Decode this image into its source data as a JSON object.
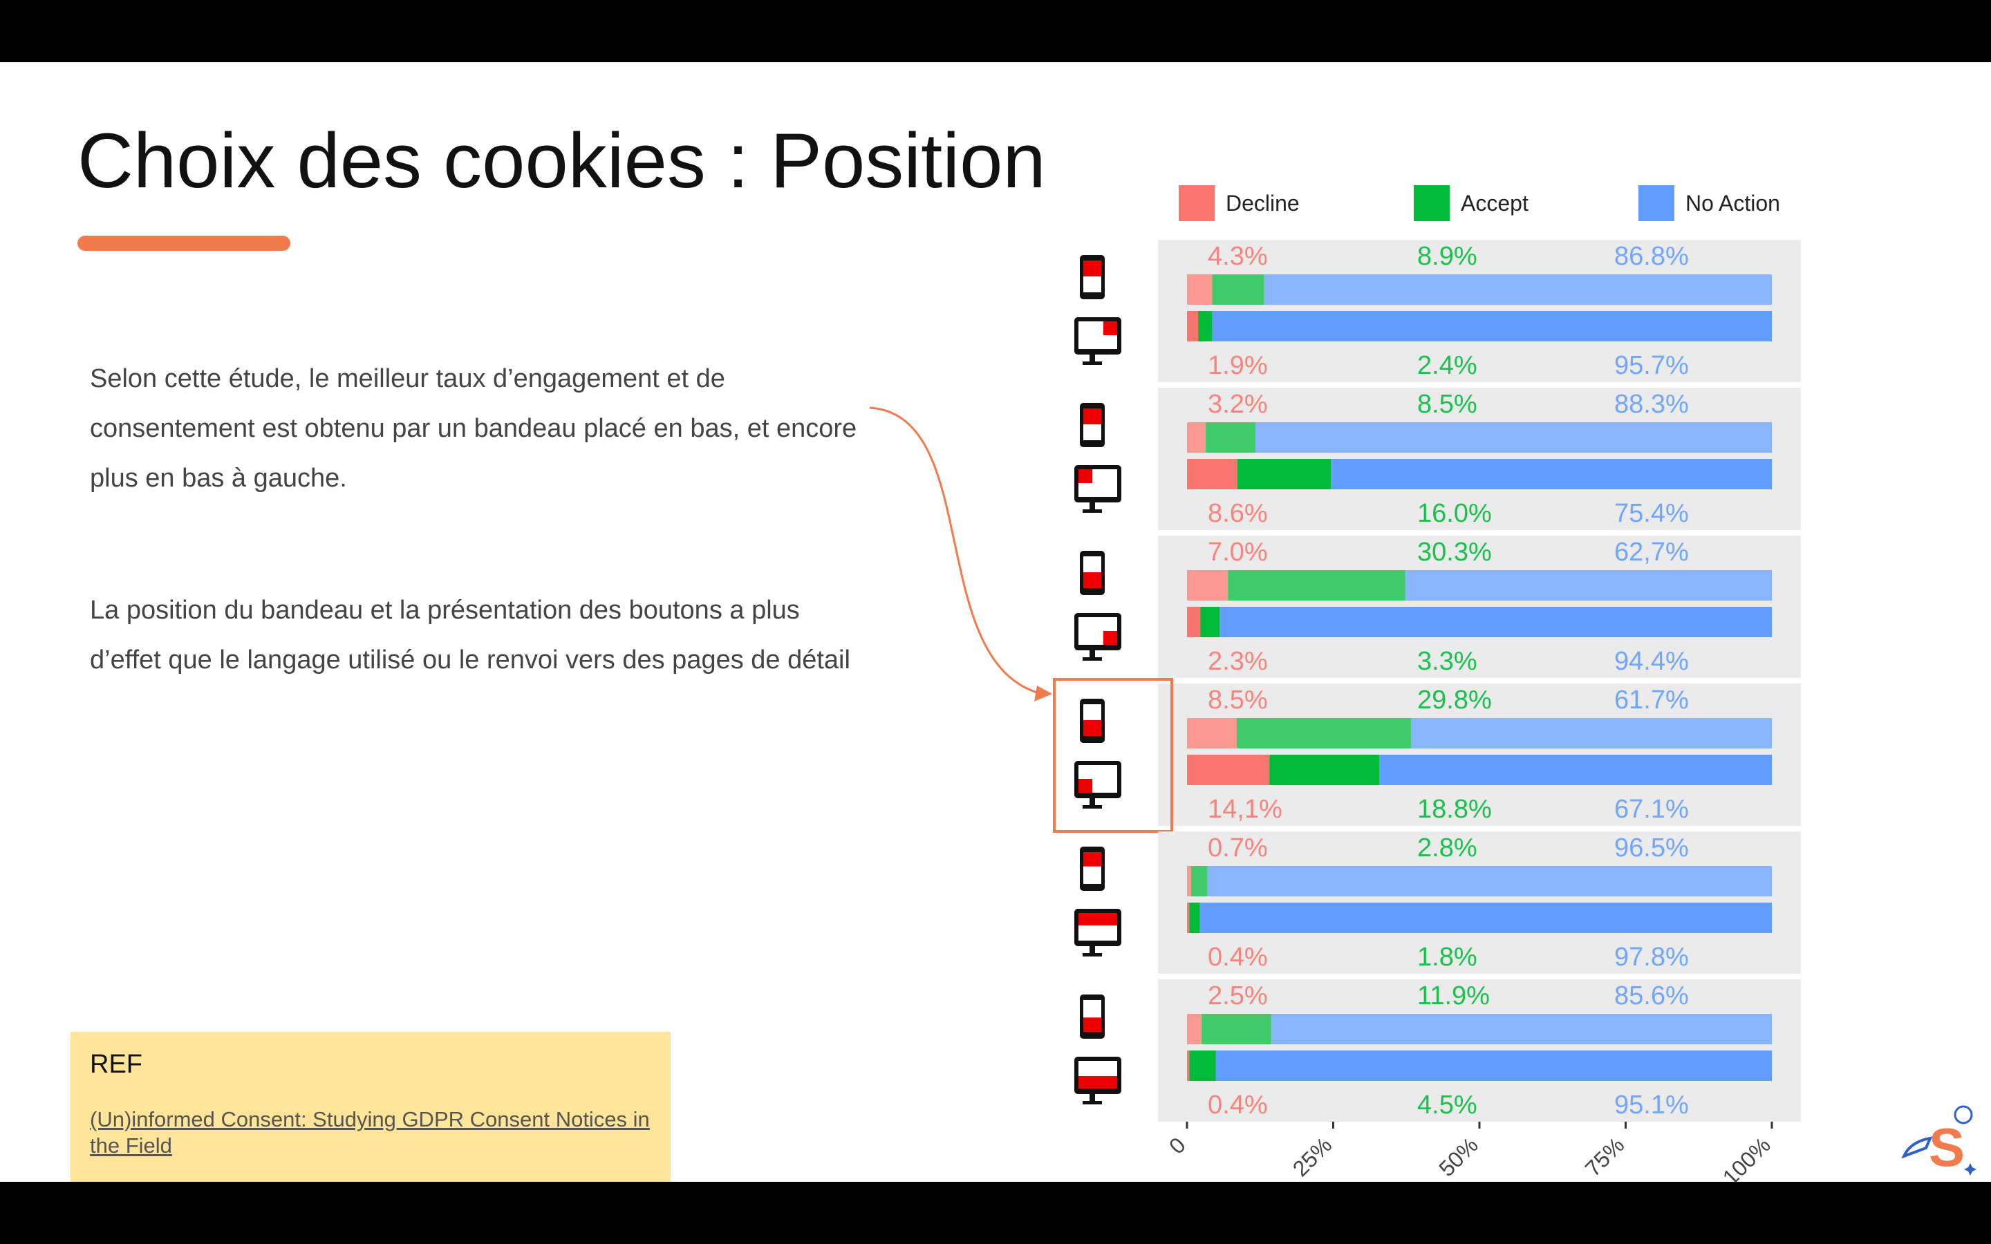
{
  "slide": {
    "title": "Choix des cookies : Position",
    "paragraph1": "Selon cette étude, le meilleur taux d’engagement et de consentement est obtenu par un bandeau placé en bas, et encore plus en bas à gauche.",
    "paragraph2": "La position du bandeau et la présentation des boutons a plus d’effet que le langage utilisé ou le renvoi vers des pages de détail",
    "ref": {
      "label": "REF",
      "link_text": "(Un)informed Consent: Studying GDPR Consent Notices in the Field"
    },
    "colors": {
      "accent": "#f27b4e",
      "ref_background": "#ffe599",
      "highlight": "#f27b4e"
    }
  },
  "chart_data": {
    "type": "bar",
    "orientation": "horizontal",
    "stacked": true,
    "normalized": true,
    "legend_position": "top",
    "series": [
      {
        "name": "Decline",
        "color": "#f8766d"
      },
      {
        "name": "Accept",
        "color": "#00ba38"
      },
      {
        "name": "No Action",
        "color": "#619cff"
      }
    ],
    "x_ticks": [
      "0",
      "25%",
      "50%",
      "75%",
      "100%"
    ],
    "xlim": [
      0,
      100
    ],
    "highlighted_group": 3,
    "groups": [
      {
        "banner_position": "top-right",
        "mobile": {
          "values": [
            4.3,
            8.9,
            86.8
          ],
          "labels": [
            "4.3%",
            "8.9%",
            "86.8%"
          ]
        },
        "desktop": {
          "values": [
            1.9,
            2.4,
            95.7
          ],
          "labels": [
            "1.9%",
            "2.4%",
            "95.7%"
          ]
        }
      },
      {
        "banner_position": "top-left",
        "mobile": {
          "values": [
            3.2,
            8.5,
            88.3
          ],
          "labels": [
            "3.2%",
            "8.5%",
            "88.3%"
          ]
        },
        "desktop": {
          "values": [
            8.6,
            16.0,
            75.4
          ],
          "labels": [
            "8.6%",
            "16.0%",
            "75.4%"
          ]
        }
      },
      {
        "banner_position": "bottom-right",
        "mobile": {
          "values": [
            7.0,
            30.3,
            62.7
          ],
          "labels": [
            "7.0%",
            "30.3%",
            "62,7%"
          ]
        },
        "desktop": {
          "values": [
            2.3,
            3.3,
            94.4
          ],
          "labels": [
            "2.3%",
            "3.3%",
            "94.4%"
          ]
        }
      },
      {
        "banner_position": "bottom-left",
        "mobile": {
          "values": [
            8.5,
            29.8,
            61.7
          ],
          "labels": [
            "8.5%",
            "29.8%",
            "61.7%"
          ]
        },
        "desktop": {
          "values": [
            14.1,
            18.8,
            67.1
          ],
          "labels": [
            "14,1%",
            "18.8%",
            "67.1%"
          ]
        }
      },
      {
        "banner_position": "top",
        "mobile": {
          "values": [
            0.7,
            2.8,
            96.5
          ],
          "labels": [
            "0.7%",
            "2.8%",
            "96.5%"
          ]
        },
        "desktop": {
          "values": [
            0.4,
            1.8,
            97.8
          ],
          "labels": [
            "0.4%",
            "1.8%",
            "97.8%"
          ]
        }
      },
      {
        "banner_position": "bottom",
        "mobile": {
          "values": [
            2.5,
            11.9,
            85.6
          ],
          "labels": [
            "2.5%",
            "11.9%",
            "85.6%"
          ]
        },
        "desktop": {
          "values": [
            0.4,
            4.5,
            95.1
          ],
          "labels": [
            "0.4%",
            "4.5%",
            "95.1%"
          ]
        }
      }
    ]
  }
}
